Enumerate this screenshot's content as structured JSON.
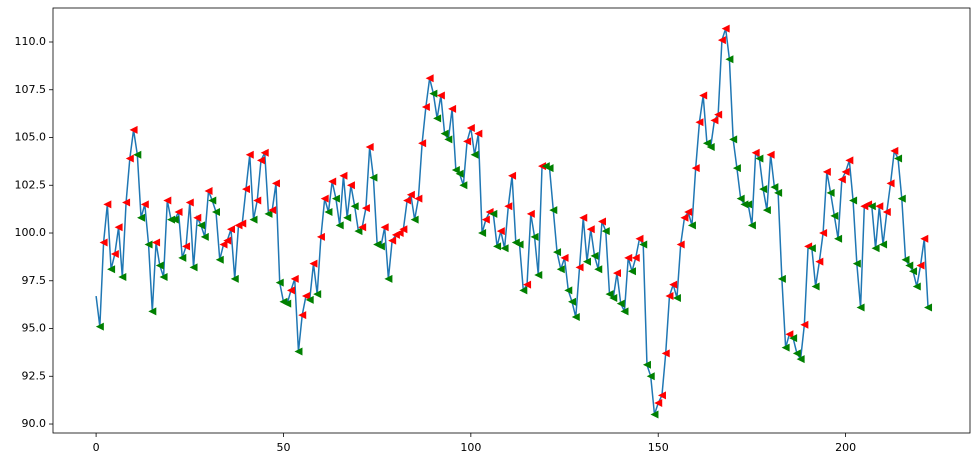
{
  "chart_data": {
    "type": "line",
    "x_start": 0,
    "values": [
      96.7,
      95.1,
      99.5,
      101.5,
      98.1,
      98.9,
      100.3,
      97.7,
      101.6,
      103.9,
      105.4,
      104.1,
      100.8,
      101.5,
      99.4,
      95.9,
      99.5,
      98.3,
      97.7,
      101.7,
      100.7,
      100.7,
      101.1,
      98.7,
      99.3,
      101.6,
      98.2,
      100.8,
      100.4,
      99.8,
      102.2,
      101.7,
      101.1,
      98.6,
      99.4,
      99.6,
      100.2,
      97.6,
      100.4,
      100.5,
      102.3,
      104.1,
      100.7,
      101.7,
      103.8,
      104.2,
      101.0,
      101.2,
      102.6,
      97.4,
      96.4,
      96.3,
      97.0,
      97.6,
      93.8,
      95.7,
      96.7,
      96.5,
      98.4,
      96.8,
      99.8,
      101.8,
      101.1,
      102.7,
      101.8,
      100.4,
      103.0,
      100.8,
      102.5,
      101.4,
      100.1,
      100.3,
      101.3,
      104.5,
      102.9,
      99.4,
      99.3,
      100.3,
      97.6,
      99.6,
      99.9,
      100.0,
      100.2,
      101.7,
      102.0,
      100.7,
      101.8,
      104.7,
      106.6,
      108.1,
      107.3,
      106.0,
      107.2,
      105.2,
      104.9,
      106.5,
      103.3,
      103.1,
      102.5,
      104.8,
      105.5,
      104.1,
      105.2,
      100.0,
      100.7,
      101.1,
      101.0,
      99.3,
      100.1,
      99.2,
      101.4,
      103.0,
      99.5,
      99.4,
      97.0,
      97.3,
      101.0,
      99.8,
      97.8,
      103.5,
      103.5,
      103.4,
      101.2,
      99.0,
      98.1,
      98.7,
      97.0,
      96.4,
      95.6,
      98.2,
      100.8,
      98.5,
      100.2,
      98.8,
      98.1,
      100.6,
      100.1,
      96.8,
      96.6,
      97.9,
      96.3,
      95.9,
      98.7,
      98.0,
      98.7,
      99.7,
      99.4,
      93.1,
      92.5,
      90.5,
      91.1,
      91.5,
      93.7,
      96.7,
      97.3,
      96.6,
      99.4,
      100.8,
      101.1,
      100.4,
      103.4,
      105.8,
      107.2,
      104.7,
      104.5,
      105.9,
      106.2,
      110.1,
      110.7,
      109.1,
      104.9,
      103.4,
      101.8,
      101.5,
      101.5,
      100.4,
      104.2,
      103.9,
      102.3,
      101.2,
      104.1,
      102.4,
      102.1,
      97.6,
      94.0,
      94.7,
      94.5,
      93.7,
      93.4,
      95.2,
      99.3,
      99.2,
      97.2,
      98.5,
      100.0,
      103.2,
      102.1,
      100.9,
      99.7,
      102.8,
      103.2,
      103.8,
      101.7,
      98.4,
      96.1,
      101.4,
      101.5,
      101.4,
      99.2,
      101.4,
      99.4,
      101.1,
      102.6,
      104.3,
      103.9,
      101.8,
      98.6,
      98.3,
      98.0,
      97.2,
      98.3,
      99.7,
      96.1
    ],
    "color": "#1f77b4",
    "marker_colors": {
      "up": "#ff0000",
      "down": "#008000"
    },
    "xlim": [
      -11.5,
      233.2
    ],
    "xticks": [
      0,
      50,
      100,
      150,
      200
    ],
    "ylim": [
      89.53,
      111.78
    ],
    "yticks": [
      {
        "value": 90,
        "label": "90.0"
      },
      92.5,
      {
        "value": 95,
        "label": "95.0"
      },
      97.5,
      {
        "value": 100,
        "label": "100.0"
      },
      102.5,
      {
        "value": 105,
        "label": "105.0"
      },
      107.5,
      {
        "value": 110,
        "label": "110.0"
      }
    ]
  }
}
